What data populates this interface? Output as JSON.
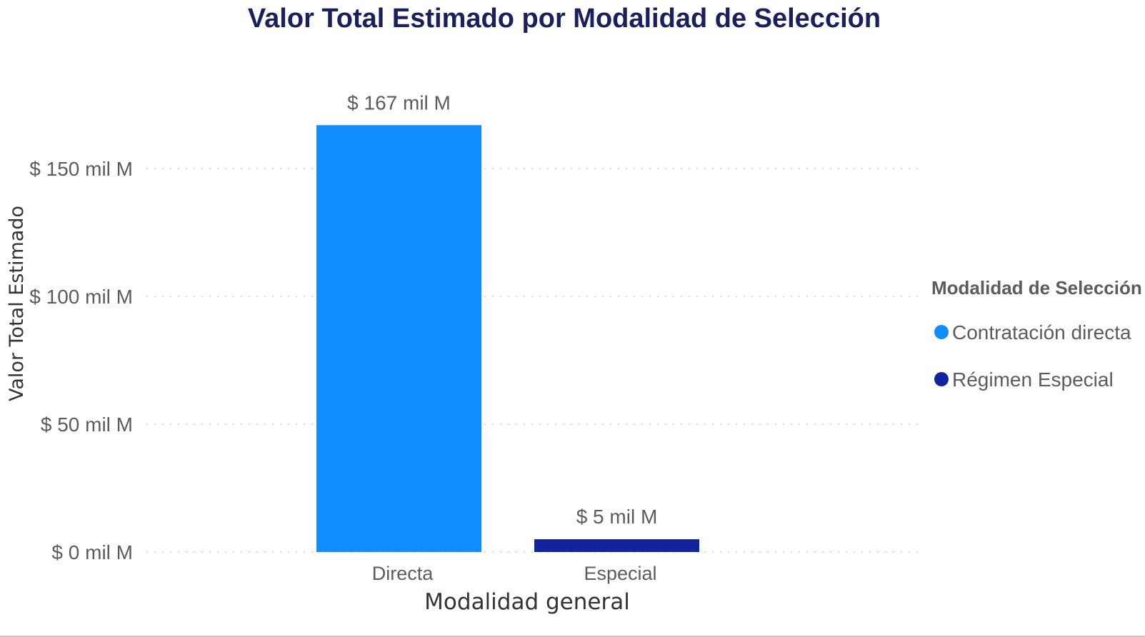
{
  "chart_data": {
    "type": "bar",
    "title": "Valor Total Estimado por Modalidad de Selección",
    "xlabel": "Modalidad general",
    "ylabel": "Valor Total Estimado",
    "categories": [
      "Directa",
      "Especial"
    ],
    "values": [
      167,
      5
    ],
    "value_labels": [
      "$ 167 mil M",
      "$ 5 mil M"
    ],
    "bar_colors": [
      "#118dff",
      "#12239e"
    ],
    "ylim": [
      0,
      175
    ],
    "yticks": [
      0,
      50,
      100,
      150
    ],
    "ytick_labels": [
      "$ 0 mil M",
      "$ 50 mil M",
      "$ 100 mil M",
      "$ 150 mil M"
    ],
    "grid": true,
    "legend": {
      "title": "Modalidad de Selección",
      "placement": "right",
      "items": [
        {
          "label": "Contratación directa",
          "color": "#118dff"
        },
        {
          "label": "Régimen Especial",
          "color": "#12239e"
        }
      ]
    }
  },
  "colors": {
    "title": "#1a1f5e",
    "text": "#5c5c5c",
    "axis_title": "#333333",
    "grid": "#d9d9d9"
  }
}
